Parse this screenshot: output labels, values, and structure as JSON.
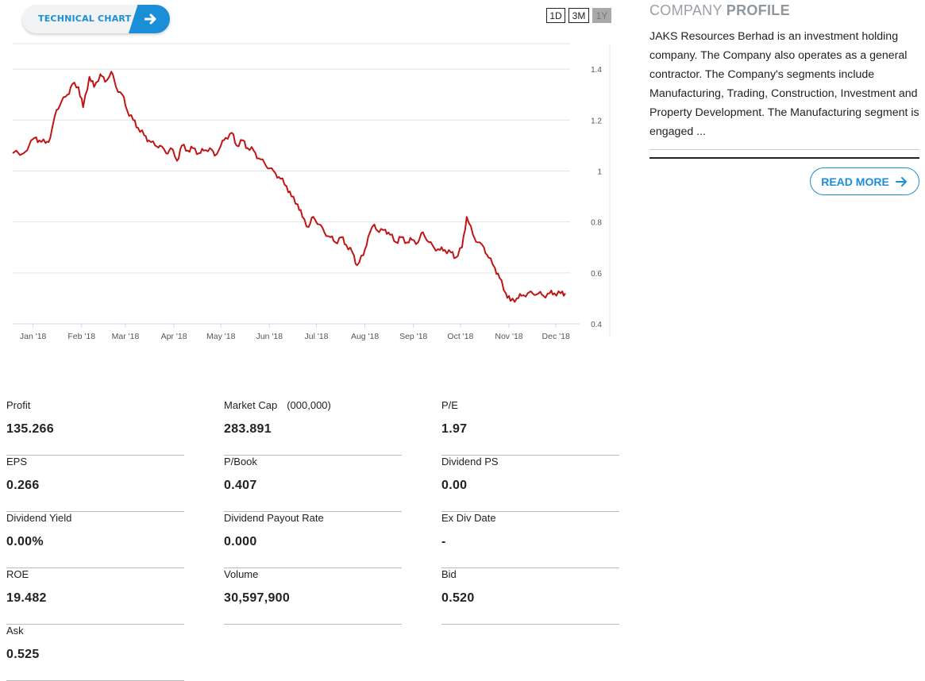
{
  "technical_chart": {
    "label": "TECHNICAL CHART"
  },
  "range_buttons": [
    {
      "label": "1D",
      "active": false
    },
    {
      "label": "3M",
      "active": false
    },
    {
      "label": "1Y",
      "active": true
    }
  ],
  "chart_data": {
    "type": "line",
    "x_labels": [
      "Jan '18",
      "Feb '18",
      "Mar '18",
      "Apr '18",
      "May '18",
      "Jun '18",
      "Jul '18",
      "Aug '18",
      "Sep '18",
      "Oct '18",
      "Nov '18",
      "Dec '18"
    ],
    "y_ticks": [
      "0.4",
      "0.6",
      "0.8",
      "1",
      "1.2",
      "1.4"
    ],
    "ylim": [
      0.4,
      1.5
    ],
    "line_color": "#c01515",
    "series": [
      {
        "x": [
          "2017-12-19",
          "2017-12-26",
          "2018-01-02",
          "2018-01-05",
          "2018-01-09",
          "2018-01-12",
          "2018-01-16",
          "2018-01-19",
          "2018-01-23",
          "2018-01-26",
          "2018-01-30",
          "2018-02-02",
          "2018-02-06",
          "2018-02-09",
          "2018-02-13",
          "2018-02-16",
          "2018-02-20",
          "2018-02-23",
          "2018-02-27",
          "2018-03-02",
          "2018-03-06",
          "2018-03-09",
          "2018-03-13",
          "2018-03-16",
          "2018-03-20",
          "2018-03-23",
          "2018-03-27",
          "2018-03-30",
          "2018-04-03",
          "2018-04-06",
          "2018-04-10",
          "2018-04-13",
          "2018-04-17",
          "2018-04-20",
          "2018-04-24",
          "2018-04-27",
          "2018-05-01",
          "2018-05-04",
          "2018-05-08",
          "2018-05-11",
          "2018-05-15",
          "2018-05-18",
          "2018-05-22",
          "2018-05-25",
          "2018-05-29",
          "2018-06-01",
          "2018-06-05",
          "2018-06-08",
          "2018-06-12",
          "2018-06-15",
          "2018-06-19",
          "2018-06-22",
          "2018-06-26",
          "2018-06-29",
          "2018-07-03",
          "2018-07-06",
          "2018-07-10",
          "2018-07-13",
          "2018-07-17",
          "2018-07-20",
          "2018-07-24",
          "2018-07-27",
          "2018-07-31",
          "2018-08-03",
          "2018-08-07",
          "2018-08-10",
          "2018-08-14",
          "2018-08-17",
          "2018-08-21",
          "2018-08-24",
          "2018-08-28",
          "2018-08-31",
          "2018-09-04",
          "2018-09-07",
          "2018-09-11",
          "2018-09-14",
          "2018-09-18",
          "2018-09-21",
          "2018-09-25",
          "2018-09-28",
          "2018-10-02",
          "2018-10-05",
          "2018-10-09",
          "2018-10-12",
          "2018-10-16",
          "2018-10-19",
          "2018-10-23",
          "2018-10-26",
          "2018-10-30",
          "2018-11-02",
          "2018-11-06",
          "2018-11-09",
          "2018-11-13",
          "2018-11-16",
          "2018-11-20",
          "2018-11-23",
          "2018-11-27",
          "2018-11-30",
          "2018-12-04",
          "2018-12-07"
        ],
        "y": [
          1.07,
          1.07,
          1.13,
          1.12,
          1.11,
          1.13,
          1.24,
          1.27,
          1.3,
          1.34,
          1.33,
          1.25,
          1.37,
          1.33,
          1.38,
          1.35,
          1.39,
          1.33,
          1.3,
          1.24,
          1.2,
          1.17,
          1.14,
          1.12,
          1.1,
          1.1,
          1.07,
          1.09,
          1.04,
          1.1,
          1.08,
          1.09,
          1.07,
          1.08,
          1.09,
          1.06,
          1.1,
          1.13,
          1.15,
          1.1,
          1.12,
          1.09,
          1.08,
          1.05,
          1.03,
          1.01,
          0.99,
          0.97,
          0.94,
          0.9,
          0.87,
          0.82,
          0.78,
          0.82,
          0.79,
          0.76,
          0.74,
          0.72,
          0.74,
          0.71,
          0.68,
          0.63,
          0.67,
          0.74,
          0.79,
          0.76,
          0.77,
          0.75,
          0.72,
          0.74,
          0.72,
          0.73,
          0.72,
          0.76,
          0.72,
          0.7,
          0.69,
          0.69,
          0.68,
          0.66,
          0.7,
          0.82,
          0.75,
          0.72,
          0.7,
          0.66,
          0.62,
          0.58,
          0.52,
          0.49,
          0.5,
          0.51,
          0.52,
          0.52,
          0.52,
          0.51,
          0.52,
          0.52,
          0.52,
          0.52
        ]
      }
    ]
  },
  "company_profile": {
    "title_light": "COMPANY",
    "title_bold": "PROFILE",
    "description": "JAKS Resources Berhad is an investment holding company. The Company also operates as a general contractor. The Company's segments include Manufacturing, Trading, Construction, Investment and Property Development. The Manufacturing segment is engaged ...",
    "read_more": "READ MORE"
  },
  "stats": [
    {
      "label": "Profit",
      "value": "135.266"
    },
    {
      "label": "Market Cap",
      "unit": "(000,000)",
      "value": "283.891"
    },
    {
      "label": "P/E",
      "value": "1.97"
    },
    {
      "label": "EPS",
      "value": "0.266"
    },
    {
      "label": "P/Book",
      "value": "0.407"
    },
    {
      "label": "Dividend PS",
      "value": "0.00"
    },
    {
      "label": "Dividend Yield",
      "value": "0.00%"
    },
    {
      "label": "Dividend Payout Rate",
      "value": "0.000"
    },
    {
      "label": "Ex Div Date",
      "value": "-"
    },
    {
      "label": "ROE",
      "value": "19.482"
    },
    {
      "label": "Volume",
      "value": "30,597,900"
    },
    {
      "label": "Bid",
      "value": "0.520"
    },
    {
      "label": "Ask",
      "value": "0.525"
    }
  ]
}
